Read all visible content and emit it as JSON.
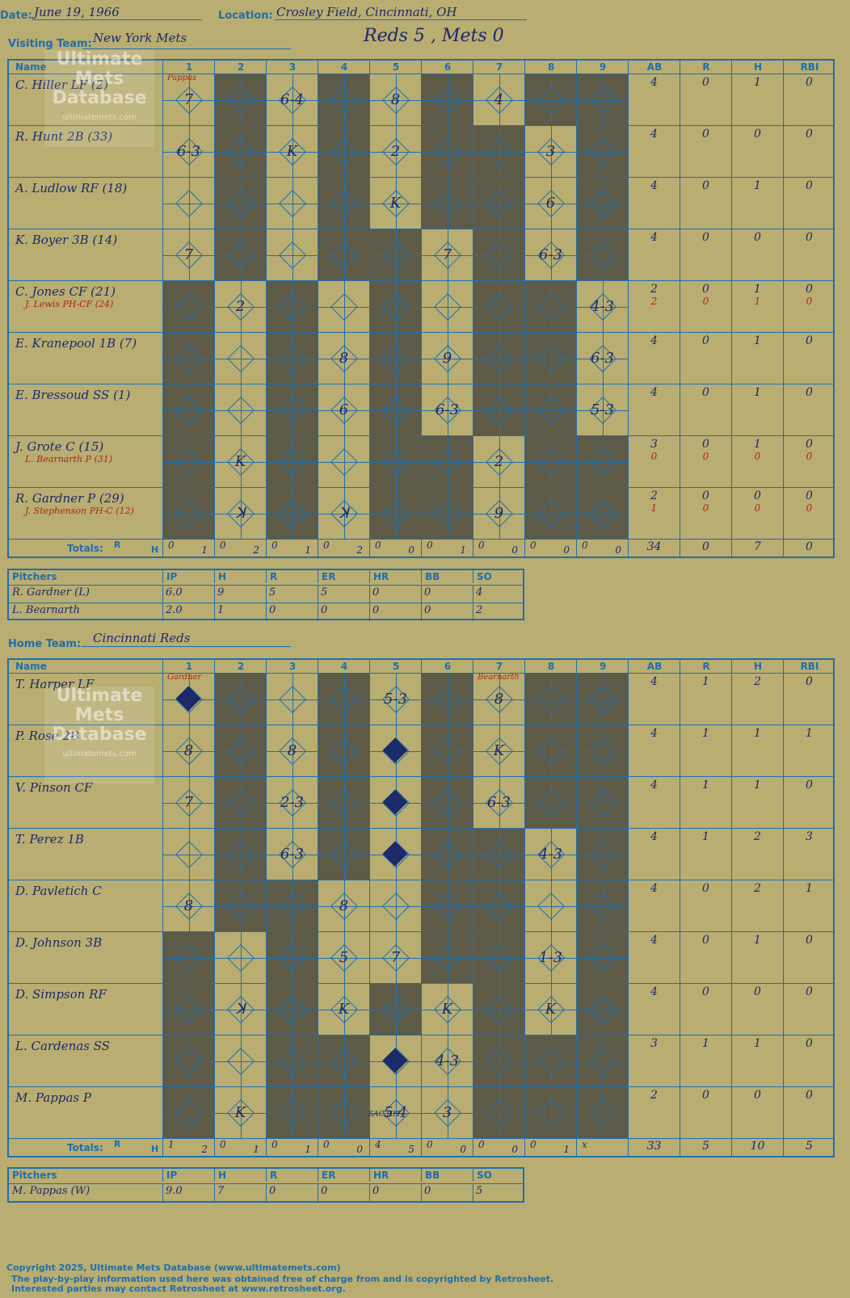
{
  "header": {
    "date_label": "Date:",
    "date": "June 19, 1966",
    "location_label": "Location:",
    "location": "Crosley Field, Cincinnati, OH",
    "visiting_label": "Visiting Team:",
    "visiting_team": "New York Mets",
    "result": "Reds 5 , Mets 0",
    "home_label": "Home Team:",
    "home_team": "Cincinnati Reds"
  },
  "columns": {
    "name": "Name",
    "innings": [
      "1",
      "2",
      "3",
      "4",
      "5",
      "6",
      "7",
      "8",
      "9"
    ],
    "stats": [
      "AB",
      "R",
      "H",
      "RBI"
    ]
  },
  "totals_label": "Totals:",
  "totals_r": "R",
  "totals_h": "H",
  "watermark": {
    "line1": "Ultimate",
    "line2": "Mets",
    "line3": "Database",
    "url": "ultimatemets.com"
  },
  "visitors": {
    "pitcher_note": "Pappas",
    "players": [
      {
        "name": "C. Hiller LF (2)",
        "sub": "",
        "ab": "4",
        "r": "0",
        "h": "1",
        "rbi": "0",
        "sub_ab": "",
        "sub_r": "",
        "sub_h": "",
        "sub_rbi": ""
      },
      {
        "name": "R. Hunt 2B (33)",
        "sub": "",
        "ab": "4",
        "r": "0",
        "h": "0",
        "rbi": "0",
        "sub_ab": "",
        "sub_r": "",
        "sub_h": "",
        "sub_rbi": ""
      },
      {
        "name": "A. Ludlow RF (18)",
        "sub": "",
        "ab": "4",
        "r": "0",
        "h": "1",
        "rbi": "0",
        "sub_ab": "",
        "sub_r": "",
        "sub_h": "",
        "sub_rbi": ""
      },
      {
        "name": "K. Boyer 3B (14)",
        "sub": "",
        "ab": "4",
        "r": "0",
        "h": "0",
        "rbi": "0",
        "sub_ab": "",
        "sub_r": "",
        "sub_h": "",
        "sub_rbi": ""
      },
      {
        "name": "C. Jones CF (21)",
        "sub": "J. Lewis PH-CF (24)",
        "ab": "2",
        "r": "0",
        "h": "1",
        "rbi": "0",
        "sub_ab": "2",
        "sub_r": "0",
        "sub_h": "1",
        "sub_rbi": "0"
      },
      {
        "name": "E. Kranepool 1B (7)",
        "sub": "",
        "ab": "4",
        "r": "0",
        "h": "1",
        "rbi": "0",
        "sub_ab": "",
        "sub_r": "",
        "sub_h": "",
        "sub_rbi": ""
      },
      {
        "name": "E. Bressoud SS (1)",
        "sub": "",
        "ab": "4",
        "r": "0",
        "h": "1",
        "rbi": "0",
        "sub_ab": "",
        "sub_r": "",
        "sub_h": "",
        "sub_rbi": ""
      },
      {
        "name": "J. Grote C (15)",
        "sub": "L. Bearnarth P (31)",
        "ab": "3",
        "r": "0",
        "h": "1",
        "rbi": "0",
        "sub_ab": "0",
        "sub_r": "0",
        "sub_h": "0",
        "sub_rbi": "0"
      },
      {
        "name": "R. Gardner P (29)",
        "sub": "J. Stephenson PH-C (12)",
        "ab": "2",
        "r": "0",
        "h": "0",
        "rbi": "0",
        "sub_ab": "1",
        "sub_r": "0",
        "sub_h": "0",
        "sub_rbi": "0"
      }
    ],
    "plays": [
      [
        "7",
        "",
        "6-4",
        "",
        "8",
        "",
        "4",
        "",
        ""
      ],
      [
        "6-3",
        "",
        "K",
        "",
        "2",
        "",
        "",
        "3",
        ""
      ],
      [
        "",
        "",
        "",
        "",
        "K",
        "",
        "",
        "6",
        ""
      ],
      [
        "7",
        "",
        "",
        "",
        "",
        "7",
        "",
        "6-3",
        ""
      ],
      [
        "",
        "2",
        "",
        "",
        "",
        "",
        "",
        "",
        "4-3"
      ],
      [
        "",
        "",
        "",
        "8",
        "",
        "9",
        "",
        "",
        "6-3"
      ],
      [
        "",
        "",
        "",
        "6",
        "",
        "6-3",
        "",
        "",
        "5-3"
      ],
      [
        "",
        "K",
        "",
        "",
        "",
        "",
        "2",
        "",
        ""
      ],
      [
        "",
        "ꓘ",
        "",
        "ꓘ",
        "",
        "",
        "9",
        "",
        ""
      ]
    ],
    "totals_innings": [
      [
        "0",
        "1"
      ],
      [
        "0",
        "2"
      ],
      [
        "0",
        "1"
      ],
      [
        "0",
        "2"
      ],
      [
        "0",
        "0"
      ],
      [
        "0",
        "1"
      ],
      [
        "0",
        "0"
      ],
      [
        "0",
        "0"
      ],
      [
        "0",
        "0"
      ]
    ],
    "totals_stats": [
      "34",
      "0",
      "7",
      "0"
    ],
    "pitchers_header": [
      "Pitchers",
      "IP",
      "H",
      "R",
      "ER",
      "HR",
      "BB",
      "SO"
    ],
    "pitchers": [
      [
        "R. Gardner (L)",
        "6.0",
        "9",
        "5",
        "5",
        "0",
        "0",
        "4"
      ],
      [
        "L. Bearnarth",
        "2.0",
        "1",
        "0",
        "0",
        "0",
        "0",
        "2"
      ]
    ]
  },
  "home": {
    "pitcher_note": "Gardner",
    "pitcher_note2": "Bearnarth",
    "players": [
      {
        "name": "T. Harper LF",
        "ab": "4",
        "r": "1",
        "h": "2",
        "rbi": "0"
      },
      {
        "name": "P. Rose 2B",
        "ab": "4",
        "r": "1",
        "h": "1",
        "rbi": "1"
      },
      {
        "name": "V. Pinson CF",
        "ab": "4",
        "r": "1",
        "h": "1",
        "rbi": "0"
      },
      {
        "name": "T. Perez 1B",
        "ab": "4",
        "r": "1",
        "h": "2",
        "rbi": "3"
      },
      {
        "name": "D. Pavletich C",
        "ab": "4",
        "r": "0",
        "h": "2",
        "rbi": "1"
      },
      {
        "name": "D. Johnson 3B",
        "ab": "4",
        "r": "0",
        "h": "1",
        "rbi": "0"
      },
      {
        "name": "D. Simpson RF",
        "ab": "4",
        "r": "0",
        "h": "0",
        "rbi": "0"
      },
      {
        "name": "L. Cardenas SS",
        "ab": "3",
        "r": "1",
        "h": "1",
        "rbi": "0"
      },
      {
        "name": "M. Pappas P",
        "ab": "2",
        "r": "0",
        "h": "0",
        "rbi": "0"
      }
    ],
    "plays": [
      [
        "",
        "",
        "",
        "",
        "5-3",
        "",
        "8",
        "",
        ""
      ],
      [
        "8",
        "",
        "8",
        "",
        "",
        "",
        "K",
        "",
        ""
      ],
      [
        "7",
        "",
        "2-3",
        "",
        "",
        "",
        "6-3",
        "",
        ""
      ],
      [
        "",
        "",
        "6-3",
        "",
        "",
        "",
        "",
        "4-3",
        ""
      ],
      [
        "8",
        "",
        "",
        "8",
        "",
        "",
        "",
        "",
        ""
      ],
      [
        "",
        "",
        "",
        "5",
        "7",
        "",
        "",
        "1-3",
        ""
      ],
      [
        "",
        "ꓘ",
        "",
        "K",
        "",
        "K",
        "",
        "K",
        ""
      ],
      [
        "",
        "",
        "",
        "",
        "",
        "4-3",
        "",
        "",
        ""
      ],
      [
        "",
        "K",
        "",
        "",
        "5-4",
        "3",
        "",
        "",
        ""
      ]
    ],
    "sac_note": "SAC HIT",
    "totals_innings": [
      [
        "1",
        "2"
      ],
      [
        "0",
        "1"
      ],
      [
        "0",
        "1"
      ],
      [
        "0",
        "0"
      ],
      [
        "4",
        "5"
      ],
      [
        "0",
        "0"
      ],
      [
        "0",
        "0"
      ],
      [
        "0",
        "1"
      ],
      [
        "x",
        ""
      ]
    ],
    "totals_stats": [
      "33",
      "5",
      "10",
      "5"
    ],
    "pitchers_header": [
      "Pitchers",
      "IP",
      "H",
      "R",
      "ER",
      "HR",
      "BB",
      "SO"
    ],
    "pitchers": [
      [
        "M. Pappas (W)",
        "9.0",
        "7",
        "0",
        "0",
        "0",
        "0",
        "5"
      ]
    ]
  },
  "footer": {
    "line1": "Copyright 2025, Ultimate Mets Database (www.ultimatemets.com)",
    "line2": "The play-by-play information used here was obtained free of charge from and is copyrighted by Retrosheet.",
    "line3": "Interested parties may contact Retrosheet at www.retrosheet.org."
  },
  "colors": {
    "background": "#b9ad72",
    "grid": "#1f6fad",
    "ink": "#1c2a6a",
    "red": "#b32418",
    "dark": "#5d5a48"
  }
}
